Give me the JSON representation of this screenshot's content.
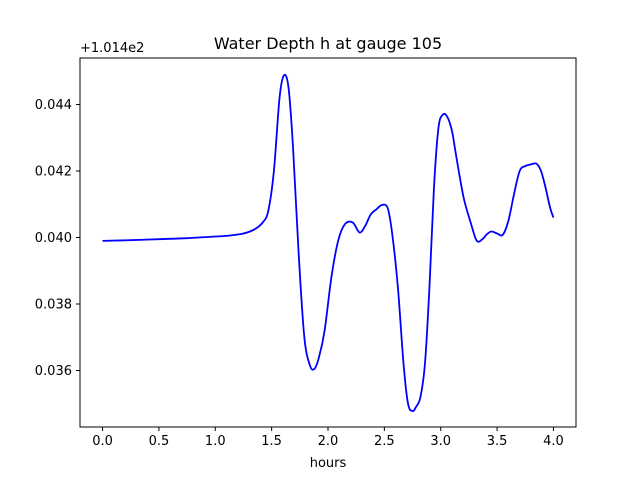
{
  "chart_data": {
    "type": "line",
    "title": "Water Depth h at gauge 105",
    "xlabel": "hours",
    "ylabel": "",
    "offset_label": "+1.014e2",
    "xlim": [
      -0.2,
      4.2
    ],
    "ylim": [
      0.0343,
      0.0454
    ],
    "xticks": [
      0.0,
      0.5,
      1.0,
      1.5,
      2.0,
      2.5,
      3.0,
      3.5,
      4.0
    ],
    "xtick_labels": [
      "0.0",
      "0.5",
      "1.0",
      "1.5",
      "2.0",
      "2.5",
      "3.0",
      "3.5",
      "4.0"
    ],
    "yticks": [
      0.036,
      0.038,
      0.04,
      0.042,
      0.044
    ],
    "ytick_labels": [
      "0.036",
      "0.038",
      "0.040",
      "0.042",
      "0.044"
    ],
    "grid": false,
    "line_color": "#0000ff",
    "series": [
      {
        "x": [
          0.0,
          0.25,
          0.5,
          0.75,
          0.95,
          1.1,
          1.25,
          1.35,
          1.42,
          1.47,
          1.52,
          1.57,
          1.61,
          1.65,
          1.69,
          1.74,
          1.79,
          1.84,
          1.88,
          1.92,
          1.97,
          2.03,
          2.09,
          2.15,
          2.22,
          2.28,
          2.33,
          2.38,
          2.43,
          2.48,
          2.53,
          2.57,
          2.62,
          2.67,
          2.71,
          2.75,
          2.78,
          2.82,
          2.86,
          2.9,
          2.94,
          2.98,
          3.02,
          3.06,
          3.1,
          3.13,
          3.17,
          3.21,
          3.27,
          3.32,
          3.37,
          3.41,
          3.45,
          3.5,
          3.55,
          3.6,
          3.65,
          3.7,
          3.75,
          3.8,
          3.85,
          3.89,
          3.93,
          3.97,
          4.0
        ],
        "y": [
          0.0399,
          0.03992,
          0.03995,
          0.03998,
          0.04002,
          0.04005,
          0.04012,
          0.04025,
          0.04045,
          0.0408,
          0.042,
          0.0442,
          0.04488,
          0.0445,
          0.0427,
          0.0395,
          0.037,
          0.03615,
          0.03605,
          0.0364,
          0.0372,
          0.0388,
          0.0399,
          0.0404,
          0.04045,
          0.04015,
          0.04035,
          0.0407,
          0.04085,
          0.04098,
          0.04088,
          0.0401,
          0.0385,
          0.0362,
          0.035,
          0.03478,
          0.0349,
          0.0352,
          0.0362,
          0.0385,
          0.0415,
          0.0433,
          0.0437,
          0.04362,
          0.0432,
          0.0426,
          0.0418,
          0.0411,
          0.0404,
          0.0399,
          0.03995,
          0.0401,
          0.04018,
          0.04012,
          0.04008,
          0.0405,
          0.0413,
          0.042,
          0.04215,
          0.0422,
          0.04222,
          0.042,
          0.0415,
          0.0409,
          0.0406
        ]
      }
    ]
  }
}
